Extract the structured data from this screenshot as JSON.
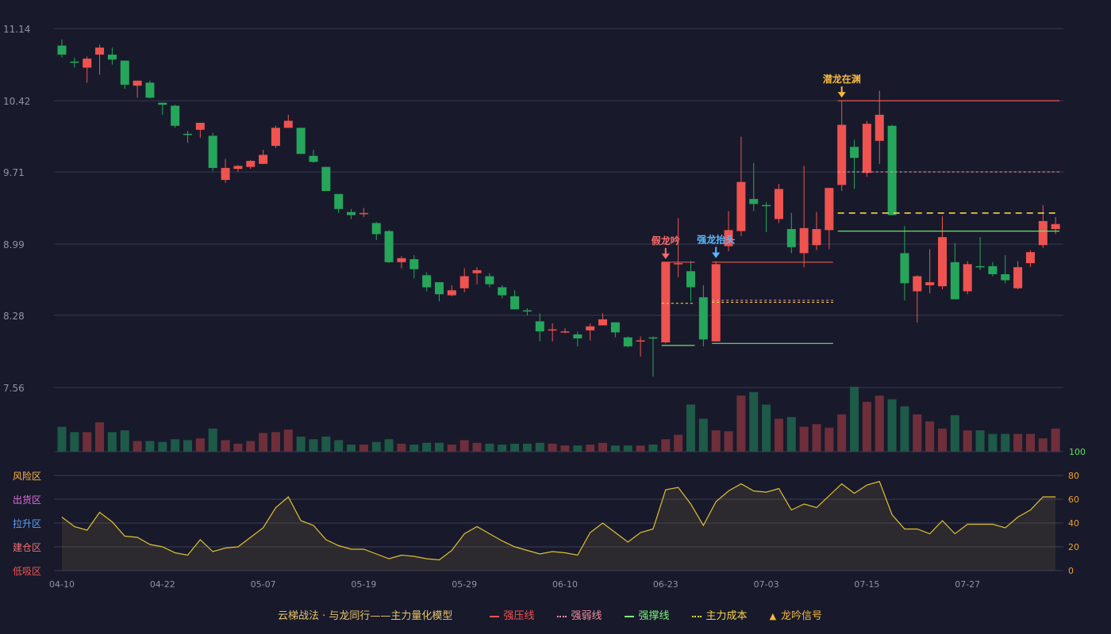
{
  "legend": {
    "title": "云梯战法 · 与龙同行——主力量化模型",
    "items": [
      {
        "label": "强压线",
        "color": "#ef5350",
        "style": "solid"
      },
      {
        "label": "强弱线",
        "color": "#f08fa0",
        "style": "dotted"
      },
      {
        "label": "强撑线",
        "color": "#7cf07c",
        "style": "solid"
      },
      {
        "label": "主力成本",
        "color": "#f5d34a",
        "style": "dashed"
      },
      {
        "label": "龙吟信号",
        "color": "#f5b83d",
        "style": "triangle"
      }
    ]
  },
  "chart_data": {
    "type": "candlestick",
    "price_axis": {
      "ticks": [
        7.56,
        8.28,
        8.99,
        9.71,
        10.42,
        11.14
      ],
      "ylim": [
        7.56,
        11.14
      ]
    },
    "x_ticks": [
      {
        "i": 0,
        "label": "04-10"
      },
      {
        "i": 8,
        "label": "04-22"
      },
      {
        "i": 16,
        "label": "05-07"
      },
      {
        "i": 24,
        "label": "05-19"
      },
      {
        "i": 32,
        "label": "05-29"
      },
      {
        "i": 40,
        "label": "06-10"
      },
      {
        "i": 48,
        "label": "06-23"
      },
      {
        "i": 56,
        "label": "07-03"
      },
      {
        "i": 64,
        "label": "07-15"
      },
      {
        "i": 72,
        "label": "07-27"
      }
    ],
    "candles": [
      [
        10.97,
        10.88,
        11.03,
        10.85
      ],
      [
        10.81,
        10.8,
        10.85,
        10.75
      ],
      [
        10.75,
        10.84,
        10.86,
        10.6
      ],
      [
        10.88,
        10.95,
        10.98,
        10.68
      ],
      [
        10.88,
        10.83,
        10.95,
        10.78
      ],
      [
        10.82,
        10.58,
        10.82,
        10.54
      ],
      [
        10.57,
        10.62,
        10.62,
        10.45
      ],
      [
        10.6,
        10.45,
        10.62,
        10.44
      ],
      [
        10.4,
        10.38,
        10.4,
        10.28
      ],
      [
        10.37,
        10.17,
        10.38,
        10.15
      ],
      [
        10.09,
        10.08,
        10.12,
        10.0
      ],
      [
        10.13,
        10.2,
        10.2,
        10.05
      ],
      [
        10.07,
        9.75,
        10.1,
        9.72
      ],
      [
        9.63,
        9.75,
        9.84,
        9.6
      ],
      [
        9.74,
        9.77,
        9.78,
        9.71
      ],
      [
        9.76,
        9.82,
        9.83,
        9.74
      ],
      [
        9.79,
        9.88,
        9.93,
        9.79
      ],
      [
        9.97,
        10.15,
        10.17,
        9.95
      ],
      [
        10.15,
        10.22,
        10.28,
        10.18
      ],
      [
        10.15,
        9.89,
        10.15,
        9.89
      ],
      [
        9.87,
        9.81,
        9.93,
        9.8
      ],
      [
        9.76,
        9.52,
        9.76,
        9.52
      ],
      [
        9.49,
        9.34,
        9.49,
        9.3
      ],
      [
        9.31,
        9.28,
        9.34,
        9.24
      ],
      [
        9.29,
        9.3,
        9.35,
        9.26
      ],
      [
        9.2,
        9.09,
        9.21,
        9.03
      ],
      [
        9.12,
        8.81,
        9.13,
        8.8
      ],
      [
        8.81,
        8.85,
        8.87,
        8.75
      ],
      [
        8.84,
        8.74,
        8.88,
        8.65
      ],
      [
        8.68,
        8.56,
        8.71,
        8.52
      ],
      [
        8.61,
        8.49,
        8.61,
        8.42
      ],
      [
        8.48,
        8.53,
        8.58,
        8.47
      ],
      [
        8.55,
        8.67,
        8.75,
        8.51
      ],
      [
        8.7,
        8.73,
        8.76,
        8.59
      ],
      [
        8.67,
        8.59,
        8.7,
        8.56
      ],
      [
        8.56,
        8.48,
        8.58,
        8.45
      ],
      [
        8.47,
        8.34,
        8.53,
        8.34
      ],
      [
        8.33,
        8.32,
        8.35,
        8.28
      ],
      [
        8.22,
        8.12,
        8.3,
        8.02
      ],
      [
        8.13,
        8.14,
        8.2,
        8.02
      ],
      [
        8.12,
        8.12,
        8.15,
        8.1
      ],
      [
        8.09,
        8.05,
        8.12,
        7.97
      ],
      [
        8.13,
        8.17,
        8.2,
        8.03
      ],
      [
        8.18,
        8.24,
        8.3,
        8.18
      ],
      [
        8.21,
        8.11,
        8.21,
        8.06
      ],
      [
        8.06,
        7.97,
        8.07,
        7.96
      ],
      [
        8.03,
        8.03,
        8.07,
        7.87
      ],
      [
        8.06,
        8.05,
        8.07,
        7.67
      ],
      [
        8.01,
        8.81,
        8.81,
        8.0
      ],
      [
        8.79,
        8.8,
        9.25,
        8.66
      ],
      [
        8.72,
        8.56,
        8.82,
        8.42
      ],
      [
        8.46,
        8.04,
        8.58,
        7.97
      ],
      [
        8.02,
        8.79,
        8.82,
        8.02
      ],
      [
        8.97,
        9.13,
        9.32,
        8.92
      ],
      [
        9.12,
        9.61,
        10.06,
        9.07
      ],
      [
        9.44,
        9.39,
        9.8,
        9.32
      ],
      [
        9.38,
        9.37,
        9.41,
        9.11
      ],
      [
        9.24,
        9.54,
        9.59,
        9.2
      ],
      [
        9.14,
        8.96,
        9.3,
        8.9
      ],
      [
        8.9,
        9.15,
        9.77,
        8.76
      ],
      [
        8.98,
        9.14,
        9.31,
        8.93
      ],
      [
        9.13,
        9.55,
        9.55,
        8.94
      ],
      [
        9.58,
        10.18,
        10.42,
        9.52
      ],
      [
        9.96,
        9.85,
        10.03,
        9.54
      ],
      [
        9.7,
        10.19,
        10.22,
        9.66
      ],
      [
        10.02,
        10.28,
        10.52,
        9.79
      ],
      [
        10.17,
        9.28,
        10.18,
        9.28
      ],
      [
        8.9,
        8.6,
        9.17,
        8.43
      ],
      [
        8.52,
        8.67,
        8.68,
        8.21
      ],
      [
        8.58,
        8.61,
        8.94,
        8.5
      ],
      [
        8.57,
        9.06,
        9.27,
        8.54
      ],
      [
        8.81,
        8.44,
        9.0,
        8.44
      ],
      [
        8.52,
        8.79,
        8.82,
        8.49
      ],
      [
        8.77,
        8.76,
        9.06,
        8.73
      ],
      [
        8.77,
        8.69,
        8.81,
        8.67
      ],
      [
        8.69,
        8.63,
        8.88,
        8.6
      ],
      [
        8.55,
        8.76,
        8.82,
        8.54
      ],
      [
        8.8,
        8.91,
        8.93,
        8.76
      ],
      [
        8.98,
        9.22,
        9.38,
        8.95
      ],
      [
        9.14,
        9.19,
        9.26,
        9.09
      ]
    ],
    "volume": [
      28,
      22,
      22,
      33,
      22,
      24,
      12,
      12,
      11,
      14,
      13,
      15,
      26,
      13,
      9,
      12,
      21,
      22,
      25,
      17,
      14,
      17,
      13,
      8,
      8,
      11,
      14,
      9,
      8,
      10,
      10,
      8,
      13,
      10,
      9,
      8,
      9,
      9,
      10,
      9,
      7,
      7,
      8,
      10,
      7,
      7,
      7,
      8,
      14,
      19,
      53,
      37,
      24,
      23,
      63,
      67,
      53,
      37,
      39,
      28,
      31,
      27,
      42,
      73,
      56,
      63,
      59,
      51,
      42,
      34,
      26,
      41,
      24,
      24,
      20,
      20,
      20,
      20,
      15,
      26
    ],
    "volume_axis": {
      "ticks": [
        100
      ]
    },
    "indicator": {
      "values": [
        45,
        37,
        34,
        49,
        41,
        29,
        28,
        22,
        20,
        15,
        13,
        26,
        16,
        19,
        20,
        28,
        36,
        53,
        62,
        42,
        38,
        26,
        21,
        18,
        18,
        14,
        10,
        13,
        12,
        10,
        9,
        17,
        31,
        37,
        31,
        25,
        20,
        17,
        14,
        16,
        15,
        13,
        32,
        40,
        32,
        24,
        32,
        35,
        68,
        70,
        56,
        38,
        58,
        67,
        73,
        67,
        66,
        69,
        51,
        56,
        53,
        63,
        73,
        65,
        72,
        75,
        47,
        35,
        35,
        31,
        42,
        31,
        39,
        39,
        39,
        36,
        45,
        51,
        62,
        62
      ],
      "ylim": [
        0,
        80
      ],
      "right_ticks": [
        0,
        20,
        40,
        60,
        80
      ],
      "zones": [
        {
          "label": "风险区",
          "value": 80,
          "color": "#ffb84d"
        },
        {
          "label": "出货区",
          "value": 60,
          "color": "#e36ee3"
        },
        {
          "label": "拉升区",
          "value": 40,
          "color": "#5aa0ff"
        },
        {
          "label": "建仓区",
          "value": 20,
          "color": "#f07070"
        },
        {
          "label": "低吸区",
          "value": 0,
          "color": "#ef5350"
        }
      ]
    },
    "lines": [
      {
        "kind": "pressure",
        "price": 8.81,
        "from": 48,
        "to": 50,
        "style": "solid",
        "color": "#ef5350"
      },
      {
        "kind": "cost",
        "price": 8.4,
        "from": 48,
        "to": 50,
        "style": "dotted",
        "color": "#f5d34a"
      },
      {
        "kind": "support",
        "price": 7.98,
        "from": 48,
        "to": 50,
        "style": "solid",
        "color": "#6de06d"
      },
      {
        "kind": "pressure",
        "price": 8.81,
        "from": 52,
        "to": 61,
        "style": "solid",
        "color": "#ef5350"
      },
      {
        "kind": "cost",
        "price": 8.41,
        "from": 52,
        "to": 61,
        "style": "dotted",
        "color": "#f5d34a"
      },
      {
        "kind": "weak",
        "price": 8.43,
        "from": 52,
        "to": 61,
        "style": "dotted",
        "color": "#f08fa0"
      },
      {
        "kind": "support",
        "price": 8.0,
        "from": 52,
        "to": 61,
        "style": "solid",
        "color": "#6de06d"
      },
      {
        "kind": "pressure",
        "price": 10.42,
        "from": 62,
        "to": 79,
        "style": "solid",
        "color": "#ef5350"
      },
      {
        "kind": "weak",
        "price": 9.71,
        "from": 62,
        "to": 79,
        "style": "dotted",
        "color": "#f08fa0"
      },
      {
        "kind": "cost",
        "price": 9.3,
        "from": 62,
        "to": 79,
        "style": "dashed",
        "color": "#f5d34a"
      },
      {
        "kind": "support",
        "price": 9.12,
        "from": 62,
        "to": 79,
        "style": "solid",
        "color": "#6de06d"
      }
    ],
    "signals": [
      {
        "i": 48,
        "label": "假龙吟",
        "color": "#ff6b6b"
      },
      {
        "i": 52,
        "label": "强龙抬头",
        "color": "#5ab8ff"
      },
      {
        "i": 62,
        "label": "潜龙在渊",
        "color": "#f5b83d"
      }
    ]
  }
}
